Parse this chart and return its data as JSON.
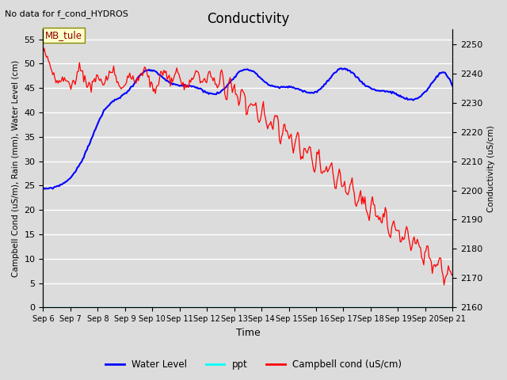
{
  "title": "Conductivity",
  "top_left_text": "No data for f_cond_HYDROS",
  "annotation_text": "MB_tule",
  "ylabel_left": "Campbell Cond (uS/m), Rain (mm), Water Level (cm)",
  "ylabel_right": "Conductivity (uS/cm)",
  "xlabel": "Time",
  "ylim_left": [
    0,
    57
  ],
  "ylim_right": [
    2160,
    2255
  ],
  "background_color": "#dcdcdc",
  "grid_color": "#f0f0f0",
  "x_tick_labels": [
    "Sep 6",
    "Sep 7",
    "Sep 8",
    "Sep 9",
    "Sep 10",
    "Sep 11",
    "Sep 12",
    "Sep 13",
    "Sep 14",
    "Sep 15",
    "Sep 16",
    "Sep 17",
    "Sep 18",
    "Sep 19",
    "Sep 20",
    "Sep 21"
  ],
  "right_yticks": [
    2160,
    2170,
    2180,
    2190,
    2200,
    2210,
    2220,
    2230,
    2240,
    2250
  ],
  "left_yticks": [
    0,
    5,
    10,
    15,
    20,
    25,
    30,
    35,
    40,
    45,
    50,
    55
  ],
  "water_level_color": "blue",
  "ppt_color": "cyan",
  "campbell_color": "red",
  "legend_items": [
    "Water Level",
    "ppt",
    "Campbell cond (uS/cm)"
  ],
  "legend_colors": [
    "blue",
    "cyan",
    "red"
  ],
  "figsize": [
    6.4,
    4.8
  ],
  "dpi": 100
}
